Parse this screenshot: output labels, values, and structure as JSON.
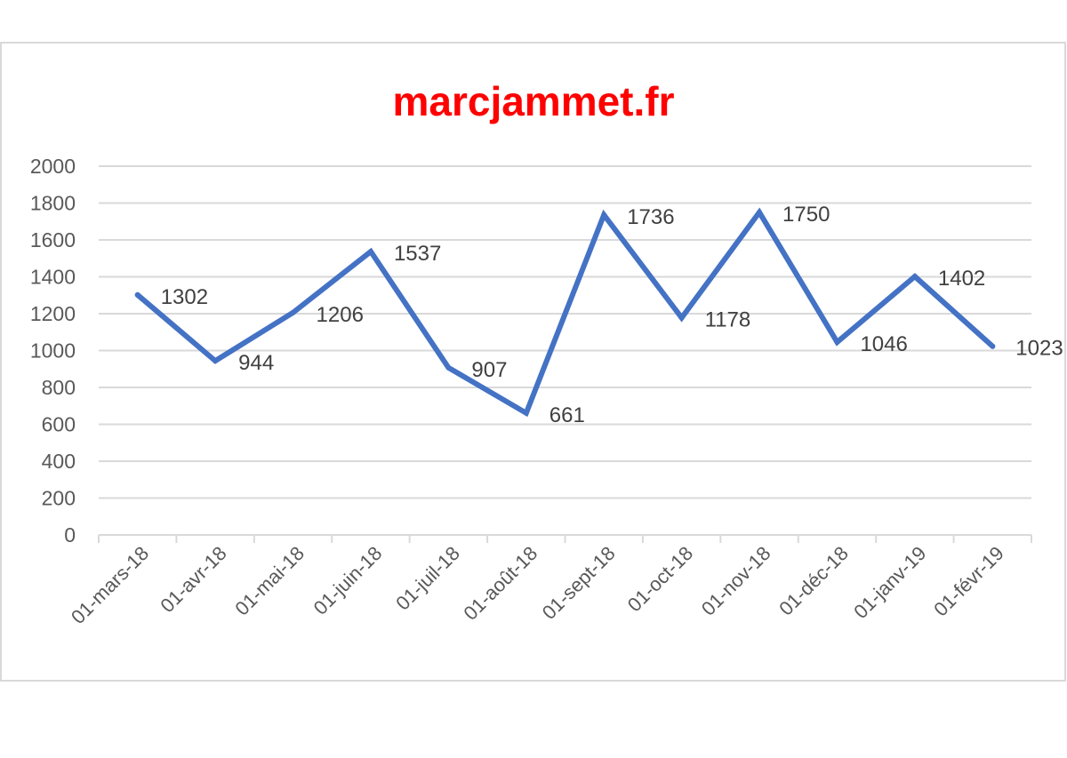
{
  "chart_data": {
    "type": "line",
    "title": "marcjammet.fr",
    "title_color": "#ff0000",
    "xlabel": "",
    "ylabel": "",
    "categories": [
      "01-mars-18",
      "01-avr-18",
      "01-mai-18",
      "01-juin-18",
      "01-juil-18",
      "01-août-18",
      "01-sept-18",
      "01-oct-18",
      "01-nov-18",
      "01-déc-18",
      "01-janv-19",
      "01-févr-19"
    ],
    "series": [
      {
        "values": [
          1302,
          944,
          1206,
          1537,
          907,
          661,
          1736,
          1178,
          1750,
          1046,
          1402,
          1023
        ],
        "color": "#4472c4"
      }
    ],
    "ylim": [
      0,
      2000
    ],
    "yticks": [
      0,
      200,
      400,
      600,
      800,
      1000,
      1200,
      1400,
      1600,
      1800,
      2000
    ],
    "grid": true,
    "legend": "none",
    "data_labels": true
  }
}
